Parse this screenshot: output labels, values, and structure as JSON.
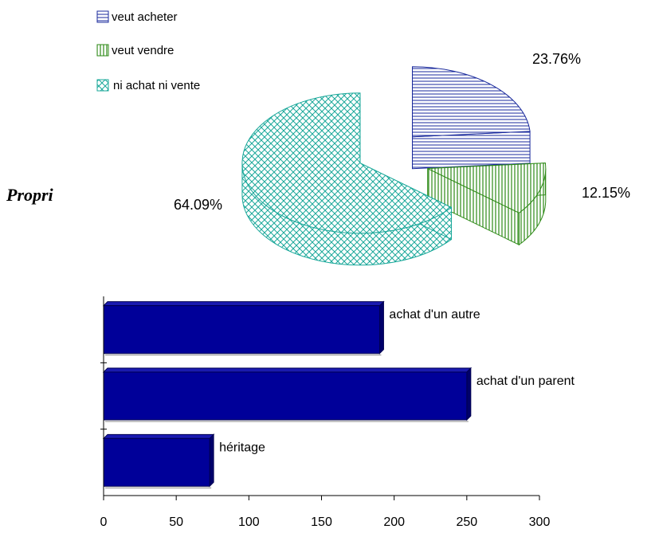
{
  "heading": "Propri",
  "chart_data": [
    {
      "type": "pie",
      "legend_placement": "top-left",
      "legend": [
        {
          "label": "veut acheter",
          "pattern": "horizontal-lines",
          "color": "#1a2a9c"
        },
        {
          "label": "veut vendre",
          "pattern": "vertical-lines",
          "color": "#2d8a16"
        },
        {
          "label": "ni achat ni vente",
          "pattern": "crosshatch",
          "color": "#1aa89a"
        }
      ],
      "slices": [
        {
          "label": "veut acheter",
          "value": 23.76,
          "display": "23.76%",
          "exploded": true
        },
        {
          "label": "veut vendre",
          "value": 12.15,
          "display": "12.15%",
          "exploded": true
        },
        {
          "label": "ni achat ni vente",
          "value": 64.09,
          "display": "64.09%",
          "exploded": false
        }
      ]
    },
    {
      "type": "bar",
      "orientation": "horizontal",
      "bar_color": "#000099",
      "categories": [
        "achat d'un autre",
        "achat d'un parent",
        "héritage"
      ],
      "values": [
        190,
        250,
        73
      ],
      "xlim": [
        0,
        300
      ],
      "xticks": [
        "0",
        "50",
        "100",
        "150",
        "200",
        "250",
        "300"
      ]
    }
  ]
}
